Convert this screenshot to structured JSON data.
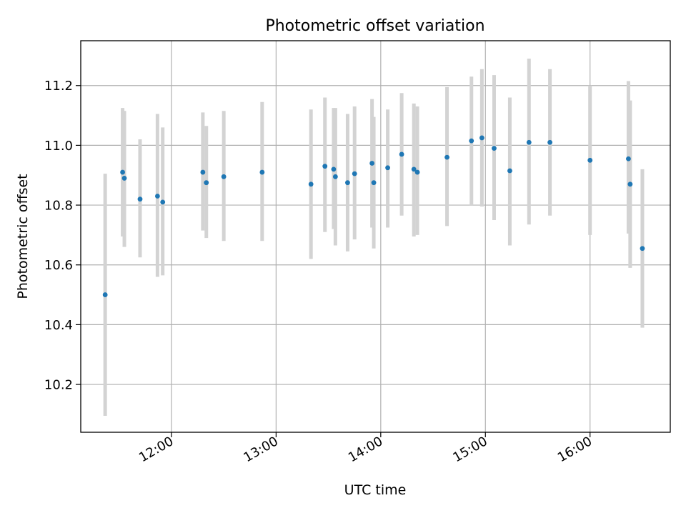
{
  "chart_data": {
    "type": "scatter",
    "title": "Photometric offset variation",
    "xlabel": "UTC time",
    "ylabel": "Photometric offset",
    "xlim": [
      "11:08",
      "16:46"
    ],
    "ylim": [
      10.04,
      11.35
    ],
    "x_ticks": [
      "12:00",
      "13:00",
      "14:00",
      "15:00",
      "16:00"
    ],
    "y_ticks": [
      "10.2",
      "10.4",
      "10.6",
      "10.8",
      "11.0",
      "11.2"
    ],
    "grid": true,
    "colors": {
      "points": "#1f77b4",
      "errorbars": "#d3d3d3",
      "grid": "#b0b0b0"
    },
    "points": [
      {
        "x": "11:22",
        "y": 10.5,
        "y_low": 10.095,
        "y_high": 10.905
      },
      {
        "x": "11:32",
        "y": 10.91,
        "y_low": 10.695,
        "y_high": 11.125
      },
      {
        "x": "11:33",
        "y": 10.89,
        "y_low": 10.66,
        "y_high": 11.115
      },
      {
        "x": "11:42",
        "y": 10.82,
        "y_low": 10.625,
        "y_high": 11.02
      },
      {
        "x": "11:52",
        "y": 10.83,
        "y_low": 10.56,
        "y_high": 11.105
      },
      {
        "x": "11:55",
        "y": 10.81,
        "y_low": 10.565,
        "y_high": 11.06
      },
      {
        "x": "12:18",
        "y": 10.91,
        "y_low": 10.715,
        "y_high": 11.11
      },
      {
        "x": "12:20",
        "y": 10.875,
        "y_low": 10.69,
        "y_high": 11.065
      },
      {
        "x": "12:30",
        "y": 10.895,
        "y_low": 10.68,
        "y_high": 11.115
      },
      {
        "x": "12:52",
        "y": 10.91,
        "y_low": 10.68,
        "y_high": 11.145
      },
      {
        "x": "13:20",
        "y": 10.87,
        "y_low": 10.62,
        "y_high": 11.12
      },
      {
        "x": "13:28",
        "y": 10.93,
        "y_low": 10.71,
        "y_high": 11.16
      },
      {
        "x": "13:33",
        "y": 10.92,
        "y_low": 10.72,
        "y_high": 11.125
      },
      {
        "x": "13:34",
        "y": 10.895,
        "y_low": 10.665,
        "y_high": 11.125
      },
      {
        "x": "13:41",
        "y": 10.875,
        "y_low": 10.645,
        "y_high": 11.105
      },
      {
        "x": "13:45",
        "y": 10.905,
        "y_low": 10.685,
        "y_high": 11.13
      },
      {
        "x": "13:55",
        "y": 10.94,
        "y_low": 10.725,
        "y_high": 11.155
      },
      {
        "x": "13:56",
        "y": 10.875,
        "y_low": 10.655,
        "y_high": 11.095
      },
      {
        "x": "14:04",
        "y": 10.925,
        "y_low": 10.725,
        "y_high": 11.12
      },
      {
        "x": "14:12",
        "y": 10.97,
        "y_low": 10.765,
        "y_high": 11.175
      },
      {
        "x": "14:19",
        "y": 10.92,
        "y_low": 10.695,
        "y_high": 11.14
      },
      {
        "x": "14:21",
        "y": 10.91,
        "y_low": 10.7,
        "y_high": 11.13
      },
      {
        "x": "14:38",
        "y": 10.96,
        "y_low": 10.73,
        "y_high": 11.195
      },
      {
        "x": "14:52",
        "y": 11.015,
        "y_low": 10.8,
        "y_high": 11.23
      },
      {
        "x": "14:58",
        "y": 11.025,
        "y_low": 10.795,
        "y_high": 11.255
      },
      {
        "x": "15:05",
        "y": 10.99,
        "y_low": 10.75,
        "y_high": 11.235
      },
      {
        "x": "15:14",
        "y": 10.915,
        "y_low": 10.665,
        "y_high": 11.16
      },
      {
        "x": "15:25",
        "y": 11.01,
        "y_low": 10.735,
        "y_high": 11.29
      },
      {
        "x": "15:37",
        "y": 11.01,
        "y_low": 10.765,
        "y_high": 11.255
      },
      {
        "x": "16:00",
        "y": 10.95,
        "y_low": 10.7,
        "y_high": 11.2
      },
      {
        "x": "16:22",
        "y": 10.955,
        "y_low": 10.705,
        "y_high": 11.215
      },
      {
        "x": "16:23",
        "y": 10.87,
        "y_low": 10.59,
        "y_high": 11.15
      },
      {
        "x": "16:30",
        "y": 10.655,
        "y_low": 10.39,
        "y_high": 10.92
      }
    ]
  }
}
